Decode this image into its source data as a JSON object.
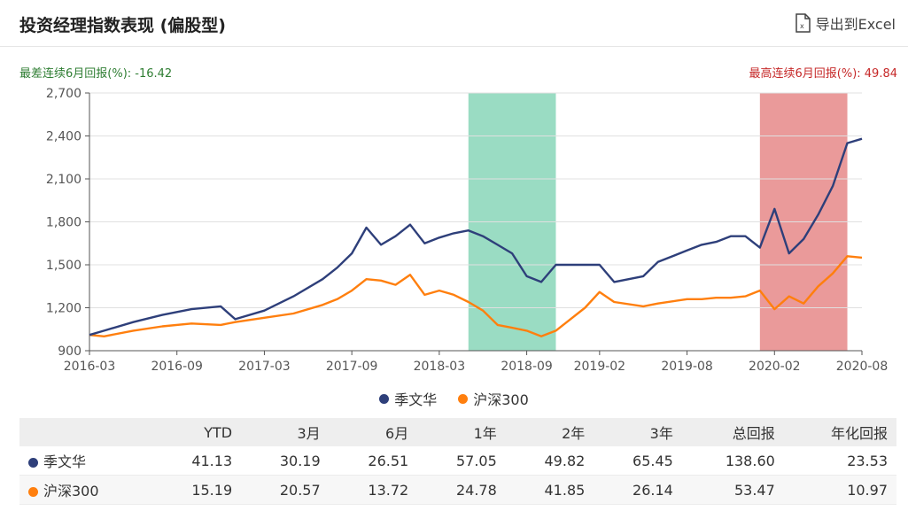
{
  "header": {
    "title": "投资经理指数表现 (偏股型)",
    "export_label": "导出到Excel",
    "export_icon": "excel-file-icon"
  },
  "stats": {
    "worst_label": "最差连续6月回报(%): -16.42",
    "best_label": "最高连续6月回报(%): 49.84"
  },
  "colors": {
    "manager": "#2e3f7a",
    "index": "#ff7f0e",
    "worst_band": "#8fd8bd",
    "best_band": "#e88f8f"
  },
  "chart_data": {
    "type": "line",
    "x_ticks": [
      "2016-03",
      "2016-09",
      "2017-03",
      "2017-09",
      "2018-03",
      "2018-09",
      "2019-02",
      "2019-08",
      "2020-02",
      "2020-08"
    ],
    "x_range": [
      "2016-03",
      "2020-08"
    ],
    "y_ticks": [
      "900",
      "1,200",
      "1,500",
      "1,800",
      "2,100",
      "2,400",
      "2,700"
    ],
    "ylim": [
      900,
      2700
    ],
    "grid": true,
    "bands": [
      {
        "name": "最差连续6月回报",
        "start": "2018-05",
        "end": "2018-11"
      },
      {
        "name": "最高连续6月回报",
        "start": "2020-01",
        "end": "2020-07"
      }
    ],
    "series": [
      {
        "name": "季文华",
        "x": [
          "2016-03",
          "2016-04",
          "2016-06",
          "2016-08",
          "2016-10",
          "2016-12",
          "2017-01",
          "2017-03",
          "2017-05",
          "2017-07",
          "2017-08",
          "2017-09",
          "2017-10",
          "2017-11",
          "2017-12",
          "2018-01",
          "2018-02",
          "2018-03",
          "2018-04",
          "2018-05",
          "2018-06",
          "2018-07",
          "2018-08",
          "2018-09",
          "2018-10",
          "2018-11",
          "2019-01",
          "2019-02",
          "2019-03",
          "2019-05",
          "2019-06",
          "2019-08",
          "2019-09",
          "2019-10",
          "2019-11",
          "2019-12",
          "2020-01",
          "2020-02",
          "2020-03",
          "2020-04",
          "2020-05",
          "2020-06",
          "2020-07",
          "2020-08"
        ],
        "values": [
          1010,
          1040,
          1100,
          1150,
          1190,
          1210,
          1120,
          1180,
          1280,
          1400,
          1480,
          1580,
          1760,
          1640,
          1700,
          1780,
          1650,
          1690,
          1720,
          1740,
          1700,
          1640,
          1580,
          1420,
          1380,
          1500,
          1500,
          1500,
          1380,
          1420,
          1520,
          1600,
          1640,
          1660,
          1700,
          1700,
          1620,
          1890,
          1580,
          1680,
          1850,
          2050,
          2350,
          2380
        ]
      },
      {
        "name": "沪深300",
        "x": [
          "2016-03",
          "2016-04",
          "2016-06",
          "2016-08",
          "2016-10",
          "2016-12",
          "2017-01",
          "2017-03",
          "2017-05",
          "2017-07",
          "2017-08",
          "2017-09",
          "2017-10",
          "2017-11",
          "2017-12",
          "2018-01",
          "2018-02",
          "2018-03",
          "2018-04",
          "2018-05",
          "2018-06",
          "2018-07",
          "2018-08",
          "2018-09",
          "2018-10",
          "2018-11",
          "2019-01",
          "2019-02",
          "2019-03",
          "2019-05",
          "2019-06",
          "2019-08",
          "2019-09",
          "2019-10",
          "2019-11",
          "2019-12",
          "2020-01",
          "2020-02",
          "2020-03",
          "2020-04",
          "2020-05",
          "2020-06",
          "2020-07",
          "2020-08"
        ],
        "values": [
          1010,
          1000,
          1040,
          1070,
          1090,
          1080,
          1100,
          1130,
          1160,
          1220,
          1260,
          1320,
          1400,
          1390,
          1360,
          1430,
          1290,
          1320,
          1290,
          1240,
          1180,
          1080,
          1060,
          1040,
          1000,
          1040,
          1200,
          1310,
          1240,
          1210,
          1230,
          1260,
          1260,
          1270,
          1270,
          1280,
          1320,
          1190,
          1280,
          1230,
          1350,
          1440,
          1560,
          1550
        ]
      }
    ]
  },
  "table": {
    "headers": [
      "",
      "YTD",
      "3月",
      "6月",
      "1年",
      "2年",
      "3年",
      "总回报",
      "年化回报"
    ],
    "rows": [
      {
        "name": "季文华",
        "values": [
          "41.13",
          "30.19",
          "26.51",
          "57.05",
          "49.82",
          "65.45",
          "138.60",
          "23.53"
        ]
      },
      {
        "name": "沪深300",
        "values": [
          "15.19",
          "20.57",
          "13.72",
          "24.78",
          "41.85",
          "26.14",
          "53.47",
          "10.97"
        ]
      }
    ]
  }
}
